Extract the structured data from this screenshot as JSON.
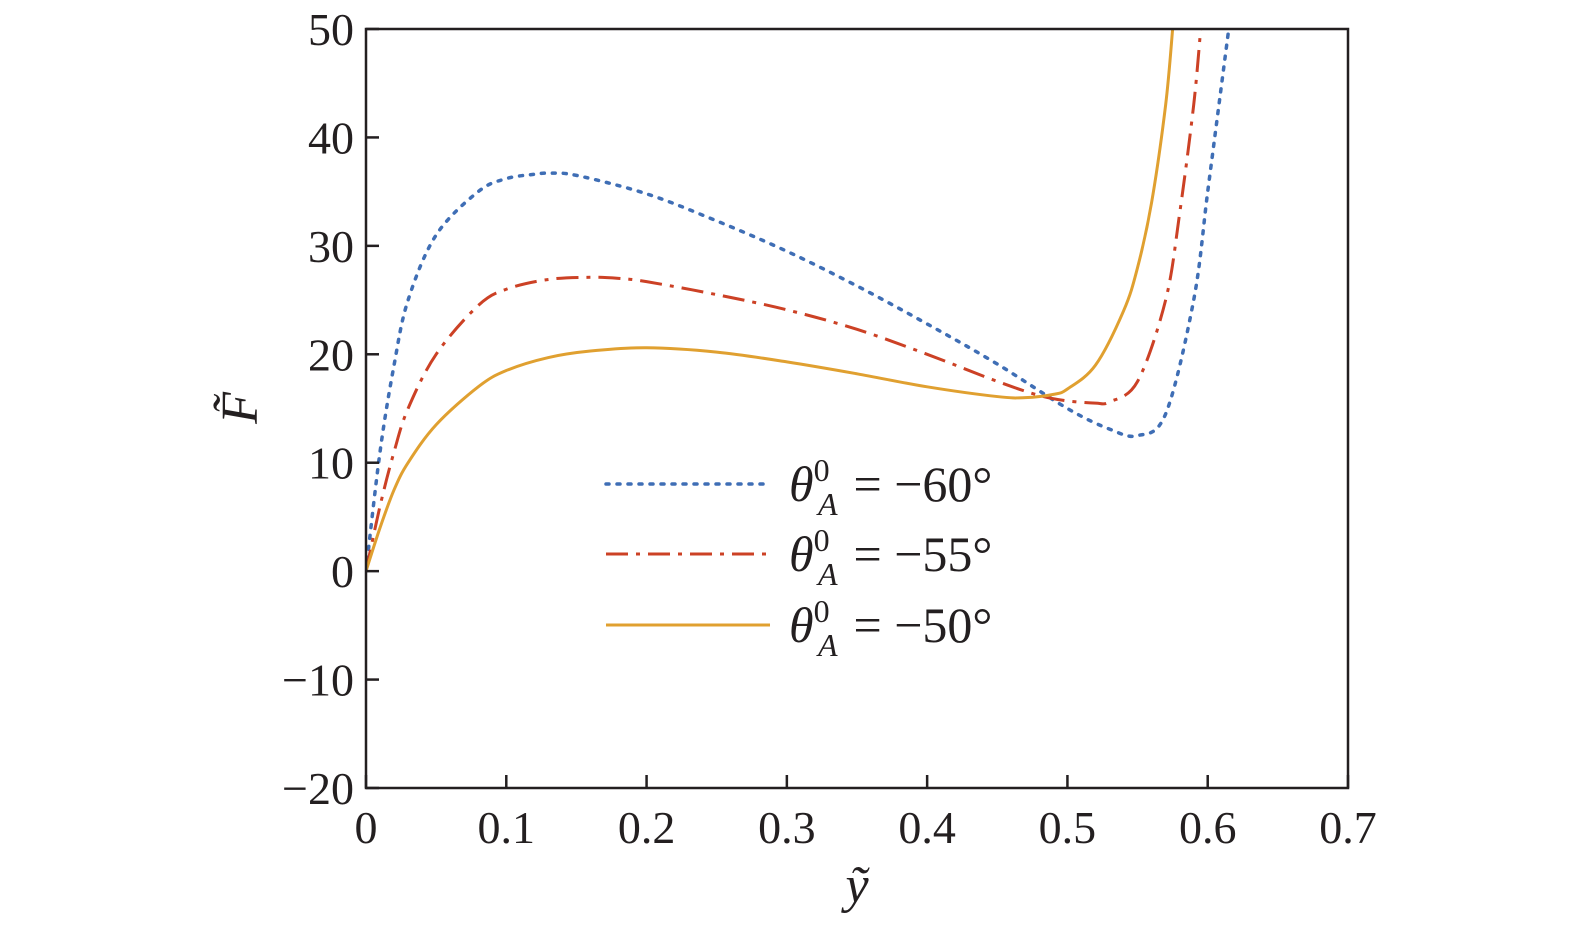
{
  "chart_data": {
    "type": "line",
    "title": "",
    "xlabel": "ỹ",
    "ylabel": "F̃",
    "xlim": [
      0,
      0.7
    ],
    "ylim": [
      -20,
      50
    ],
    "x_ticks": [
      0,
      0.1,
      0.2,
      0.3,
      0.4,
      0.5,
      0.6,
      0.7
    ],
    "y_ticks": [
      -20,
      -10,
      0,
      10,
      20,
      30,
      40,
      50
    ],
    "x_tick_labels": [
      "0",
      "0.1",
      "0.2",
      "0.3",
      "0.4",
      "0.5",
      "0.6",
      "0.7"
    ],
    "y_tick_labels": [
      "−20",
      "−10",
      "0",
      "10",
      "20",
      "30",
      "40",
      "50"
    ],
    "grid": false,
    "legend_position": "center",
    "series": [
      {
        "name": "θA0 = −60°",
        "legend": {
          "symbol": "θ",
          "superscript": "0",
          "subscript": "A",
          "rest": " = −60°"
        },
        "color": "#3f6eb5",
        "style": "dotted",
        "x": [
          0,
          0.01,
          0.02,
          0.03,
          0.05,
          0.08,
          0.1,
          0.12,
          0.13,
          0.15,
          0.2,
          0.25,
          0.3,
          0.35,
          0.4,
          0.45,
          0.5,
          0.53,
          0.55,
          0.57,
          0.59,
          0.6,
          0.61,
          0.615
        ],
        "y": [
          0,
          11,
          19,
          25,
          31,
          35,
          36.2,
          36.6,
          36.7,
          36.5,
          34.8,
          32.3,
          29.5,
          26.3,
          22.8,
          19.1,
          15.0,
          13.1,
          12.5,
          14.5,
          25,
          35,
          45,
          50
        ]
      },
      {
        "name": "θA0 = −55°",
        "legend": {
          "symbol": "θ",
          "superscript": "0",
          "subscript": "A",
          "rest": " = −55°"
        },
        "color": "#cc4125",
        "style": "dash-dot",
        "x": [
          0,
          0.01,
          0.02,
          0.03,
          0.05,
          0.08,
          0.1,
          0.13,
          0.16,
          0.18,
          0.2,
          0.25,
          0.3,
          0.35,
          0.4,
          0.45,
          0.48,
          0.5,
          0.52,
          0.53,
          0.55,
          0.57,
          0.58,
          0.59,
          0.595
        ],
        "y": [
          0,
          6,
          11,
          15,
          20,
          24.5,
          26,
          26.9,
          27.1,
          27.0,
          26.7,
          25.5,
          24.1,
          22.3,
          20.0,
          17.5,
          16.2,
          15.7,
          15.5,
          15.6,
          17.5,
          25,
          33,
          43,
          50
        ]
      },
      {
        "name": "θA0 = −50°",
        "legend": {
          "symbol": "θ",
          "superscript": "0",
          "subscript": "A",
          "rest": " = −50°"
        },
        "color": "#e0a030",
        "style": "solid",
        "x": [
          0,
          0.01,
          0.02,
          0.03,
          0.05,
          0.08,
          0.1,
          0.13,
          0.16,
          0.2,
          0.25,
          0.3,
          0.35,
          0.4,
          0.45,
          0.47,
          0.49,
          0.5,
          0.52,
          0.54,
          0.55,
          0.56,
          0.57,
          0.575
        ],
        "y": [
          0,
          4,
          7.5,
          10,
          13.5,
          17,
          18.5,
          19.7,
          20.3,
          20.6,
          20.2,
          19.3,
          18.2,
          17.0,
          16.1,
          16.0,
          16.3,
          16.8,
          19,
          24,
          28,
          34,
          43,
          50
        ]
      }
    ]
  }
}
